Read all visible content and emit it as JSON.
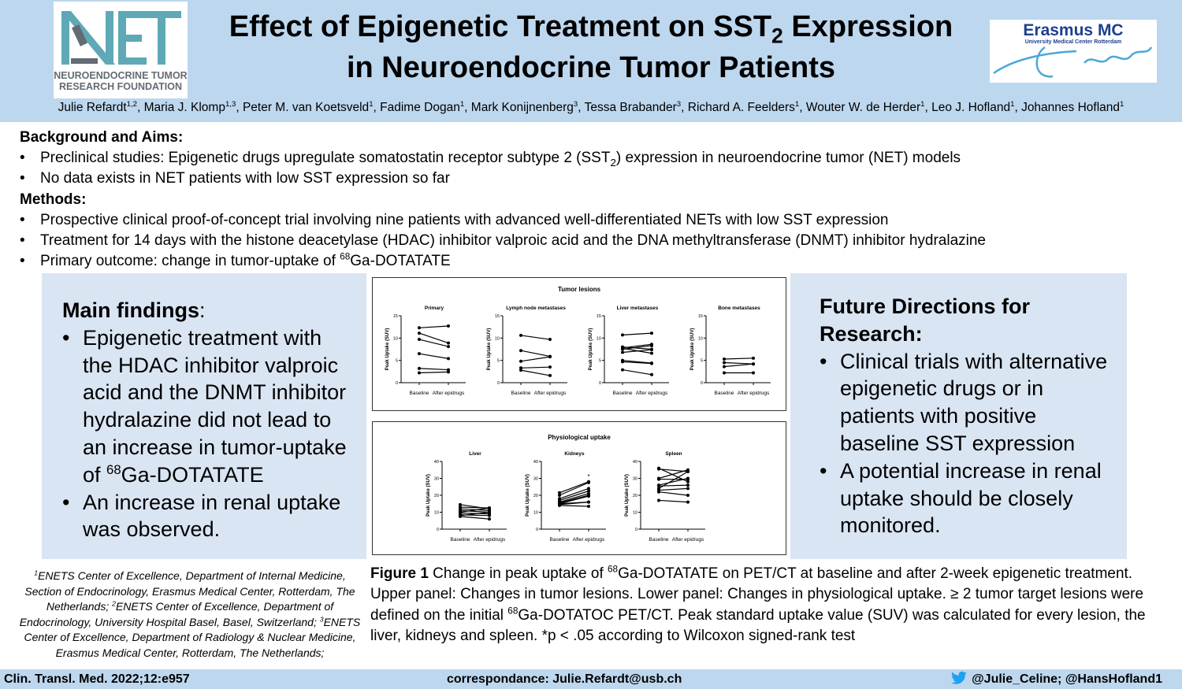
{
  "header": {
    "logo_left": {
      "text_line1": "NEUROENDOCRINE TUMOR",
      "text_line2": "RESEARCH FOUNDATION",
      "mark": "NET",
      "color": "#5ea9b5"
    },
    "logo_right": {
      "name": "Erasmus MC",
      "subtitle": "University Medical Center Rotterdam",
      "signature": "Erasmus",
      "color": "#1e3f8f"
    },
    "title_part1": "Effect of Epigenetic Treatment on SST",
    "title_sub": "2",
    "title_part2": " Expression",
    "title_line2": "in Neuroendocrine Tumor Patients",
    "authors": [
      {
        "name": "Julie Refardt",
        "sup": "1,2"
      },
      {
        "name": "Maria J. Klomp",
        "sup": "1,3"
      },
      {
        "name": "Peter M. van Koetsveld",
        "sup": "1"
      },
      {
        "name": "Fadime Dogan",
        "sup": "1"
      },
      {
        "name": "Mark Konijnenberg",
        "sup": "3"
      },
      {
        "name": "Tessa Brabander",
        "sup": "3"
      },
      {
        "name": "Richard A. Feelders",
        "sup": "1"
      },
      {
        "name": "Wouter W. de Herder",
        "sup": "1"
      },
      {
        "name": "Leo J. Hofland",
        "sup": "1"
      },
      {
        "name": "Johannes Hofland",
        "sup": "1"
      }
    ]
  },
  "background": {
    "heading": "Background and Aims:",
    "b1_pre": "Preclinical studies: Epigenetic drugs upregulate somatostatin receptor subtype 2 (SST",
    "b1_sub": "2",
    "b1_post": ") expression in neuroendocrine tumor (NET) models",
    "b2": "No data exists in NET patients with low SST expression so far"
  },
  "methods": {
    "heading": "Methods:",
    "m1": "Prospective clinical proof-of-concept trial involving nine patients with advanced well-differentiated NETs with low SST expression",
    "m2": "Treatment for 14 days with the histone deacetylase (HDAC) inhibitor valproic acid and the DNA methyltransferase (DNMT) inhibitor hydralazine",
    "m3_pre": "Primary outcome: change in tumor-uptake of ",
    "m3_sup": "68",
    "m3_post": "Ga-DOTATATE"
  },
  "main_findings": {
    "heading": "Main findings",
    "colon": ":",
    "f1_pre": "Epigenetic treatment with the HDAC inhibitor valproic acid and the DNMT inhibitor hydralazine did not lead to an increase in tumor-uptake of ",
    "f1_sup": "68",
    "f1_post": "Ga-DOTATATE",
    "f2": "An increase in renal uptake was observed."
  },
  "future": {
    "heading": "Future Directions for Research:",
    "d1": "Clinical trials with alternative epigenetic drugs or in patients with positive baseline SST expression",
    "d2": "A potential increase in renal uptake should be closely monitored."
  },
  "chart_data": [
    {
      "type": "line",
      "title": "Tumor lesions",
      "subplots": [
        {
          "title": "Primary",
          "ylabel": "Peak Uptake (SUV)",
          "categories": [
            "Baseline",
            "After epidrugs"
          ],
          "ylim": [
            0,
            15
          ],
          "yticks": [
            0,
            5,
            10,
            15
          ],
          "pairs": [
            [
              12.3,
              12.7
            ],
            [
              11.1,
              8.9
            ],
            [
              9.7,
              8.1
            ],
            [
              6.5,
              5.4
            ],
            [
              3.2,
              2.9
            ],
            [
              2.2,
              2.4
            ]
          ]
        },
        {
          "title": "Lymph node metastases",
          "ylabel": "Peak Uptake (SUV)",
          "categories": [
            "Baseline",
            "After epidrugs"
          ],
          "ylim": [
            0,
            15
          ],
          "yticks": [
            0,
            5,
            10,
            15
          ],
          "pairs": [
            [
              10.6,
              9.7
            ],
            [
              7.2,
              5.9
            ],
            [
              4.8,
              5.8
            ],
            [
              3.3,
              3.5
            ],
            [
              2.8,
              1.6
            ]
          ]
        },
        {
          "title": "Liver metastases",
          "ylabel": "Peak Uptake (SUV)",
          "categories": [
            "Baseline",
            "After epidrugs"
          ],
          "ylim": [
            0,
            15
          ],
          "yticks": [
            0,
            5,
            10,
            15
          ],
          "pairs": [
            [
              10.7,
              11.1
            ],
            [
              8.0,
              7.5
            ],
            [
              7.8,
              8.6
            ],
            [
              7.5,
              8.3
            ],
            [
              7.7,
              6.6
            ],
            [
              6.8,
              7.4
            ],
            [
              5.0,
              4.4
            ],
            [
              4.7,
              4.3
            ],
            [
              2.9,
              1.8
            ]
          ]
        },
        {
          "title": "Bone metastases",
          "ylabel": "Peak Uptake (SUV)",
          "categories": [
            "Baseline",
            "After epidrugs"
          ],
          "ylim": [
            0,
            15
          ],
          "yticks": [
            0,
            5,
            10,
            15
          ],
          "pairs": [
            [
              5.3,
              5.5
            ],
            [
              4.5,
              4.2
            ],
            [
              3.6,
              4.2
            ],
            [
              2.2,
              2.2
            ]
          ]
        }
      ]
    },
    {
      "type": "line",
      "title": "Physiological uptake",
      "subplots": [
        {
          "title": "Liver",
          "ylabel": "Peak Uptake (SUV)",
          "categories": [
            "Baseline",
            "After epidrugs"
          ],
          "ylim": [
            0,
            40
          ],
          "yticks": [
            0,
            10,
            20,
            30,
            40
          ],
          "pairs": [
            [
              14.5,
              12
            ],
            [
              13,
              12.5
            ],
            [
              12,
              11
            ],
            [
              11,
              10
            ],
            [
              10,
              12.5
            ],
            [
              9.5,
              9
            ],
            [
              8.5,
              8
            ],
            [
              7.5,
              6
            ],
            [
              8,
              10
            ]
          ]
        },
        {
          "title": "Kidneys",
          "ylabel": "Peak Uptake (SUV)",
          "categories": [
            "Baseline",
            "After epidrugs"
          ],
          "ylim": [
            0,
            40
          ],
          "yticks": [
            0,
            10,
            20,
            30,
            40
          ],
          "annotation": "*",
          "pairs": [
            [
              21.5,
              28
            ],
            [
              20,
              27.5
            ],
            [
              18,
              24
            ],
            [
              17,
              22.5
            ],
            [
              16,
              21
            ],
            [
              15.5,
              20
            ],
            [
              15,
              19.5
            ],
            [
              14.5,
              16
            ],
            [
              14,
              13.5
            ],
            [
              15,
              16
            ]
          ]
        },
        {
          "title": "Spleen",
          "ylabel": "Peak Uptake (SUV)",
          "categories": [
            "Baseline",
            "After epidrugs"
          ],
          "ylim": [
            0,
            40
          ],
          "yticks": [
            0,
            10,
            20,
            30,
            40
          ],
          "pairs": [
            [
              36,
              28
            ],
            [
              35.5,
              34
            ],
            [
              30,
              35
            ],
            [
              29.5,
              29.5
            ],
            [
              26,
              30
            ],
            [
              25.5,
              26
            ],
            [
              24,
              34
            ],
            [
              23,
              24
            ],
            [
              22,
              20
            ],
            [
              17,
              16
            ]
          ]
        }
      ]
    }
  ],
  "affiliations": {
    "a1_sup": "1",
    "a1": "ENETS Center of Excellence, Department of Internal Medicine, Section of Endocrinology, Erasmus Medical Center, Rotterdam, The Netherlands; ",
    "a2_sup": "2",
    "a2": "ENETS Center of Excellence, Department of Endocrinology, University Hospital Basel, Basel, Switzerland; ",
    "a3_sup": "3",
    "a3": "ENETS Center of Excellence, Department of Radiology & Nuclear Medicine, Erasmus Medical Center, Rotterdam, The Netherlands;"
  },
  "caption": {
    "label": "Figure 1",
    "p1": " Change in peak uptake of ",
    "sup1": "68",
    "p2": "Ga-DOTATATE on PET/CT at baseline and after 2-week epigenetic treatment. Upper panel: Changes in tumor lesions. Lower panel: Changes in physiological uptake. ≥ 2 tumor target lesions were defined on the initial ",
    "sup2": "68",
    "p3": "Ga-DOTATOC PET/CT. Peak standard uptake value (SUV) was calculated for every lesion, the liver, kidneys and spleen. *p < .05 according to Wilcoxon signed-rank test"
  },
  "footer": {
    "citation": "Clin. Transl. Med. 2022;12:e957",
    "contact": "correspondance: Julie.Refardt@usb.ch",
    "twitter_icon": "twitter-bird-icon",
    "twitter_color": "#1da1f2",
    "handles": "@Julie_Celine; @HansHofland1"
  }
}
